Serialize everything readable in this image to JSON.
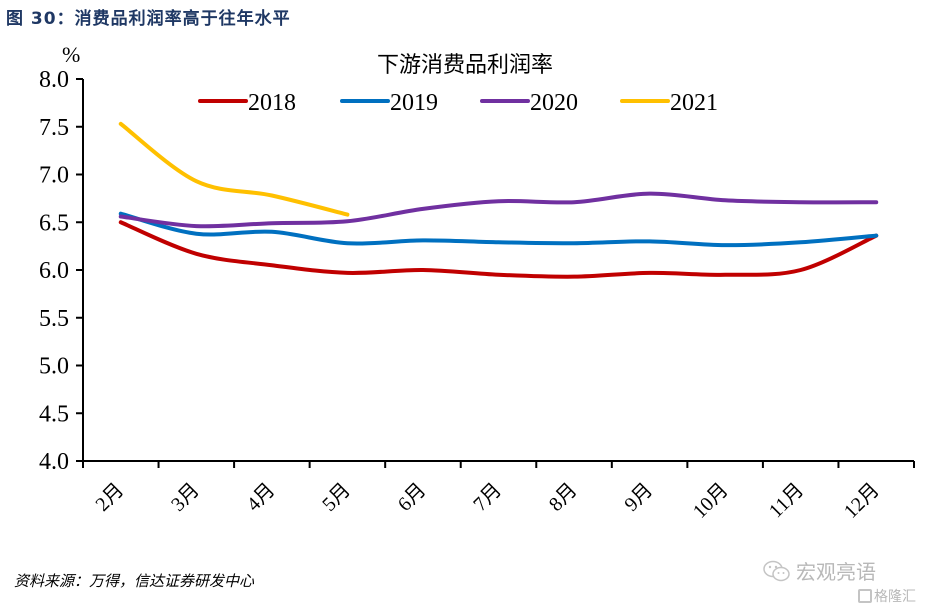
{
  "figure": {
    "title": "图 30：消费品利润率高于往年水平",
    "source": "资料来源：万得，信达证券研发中心",
    "watermark": {
      "account": "宏观亮语",
      "platform": "格隆汇",
      "icon": "wechat-icon"
    }
  },
  "chart_data": {
    "type": "line",
    "title": "下游消费品利润率",
    "unit_label": "%",
    "xlabel": "",
    "ylabel": "%",
    "ylim": [
      4.0,
      8.0
    ],
    "yticks": [
      4.0,
      4.5,
      5.0,
      5.5,
      6.0,
      6.5,
      7.0,
      7.5,
      8.0
    ],
    "ytick_labels": [
      "4.0",
      "4.5",
      "5.0",
      "5.5",
      "6.0",
      "6.5",
      "7.0",
      "7.5",
      "8.0"
    ],
    "categories": [
      "2月",
      "3月",
      "4月",
      "5月",
      "6月",
      "7月",
      "8月",
      "9月",
      "10月",
      "11月",
      "12月"
    ],
    "grid": false,
    "legend_position": "top-center",
    "smooth": true,
    "series": [
      {
        "name": "2018",
        "color": "#c00000",
        "values": [
          6.5,
          6.17,
          6.05,
          5.97,
          6.0,
          5.95,
          5.93,
          5.97,
          5.95,
          6.0,
          6.36
        ]
      },
      {
        "name": "2019",
        "color": "#0070c0",
        "values": [
          6.59,
          6.38,
          6.4,
          6.28,
          6.31,
          6.29,
          6.28,
          6.3,
          6.26,
          6.29,
          6.36
        ]
      },
      {
        "name": "2020",
        "color": "#7030a0",
        "values": [
          6.56,
          6.46,
          6.49,
          6.51,
          6.64,
          6.72,
          6.71,
          6.8,
          6.73,
          6.71,
          6.71
        ]
      },
      {
        "name": "2021",
        "color": "#ffc000",
        "values": [
          7.53,
          6.93,
          6.78,
          6.58
        ]
      }
    ]
  }
}
